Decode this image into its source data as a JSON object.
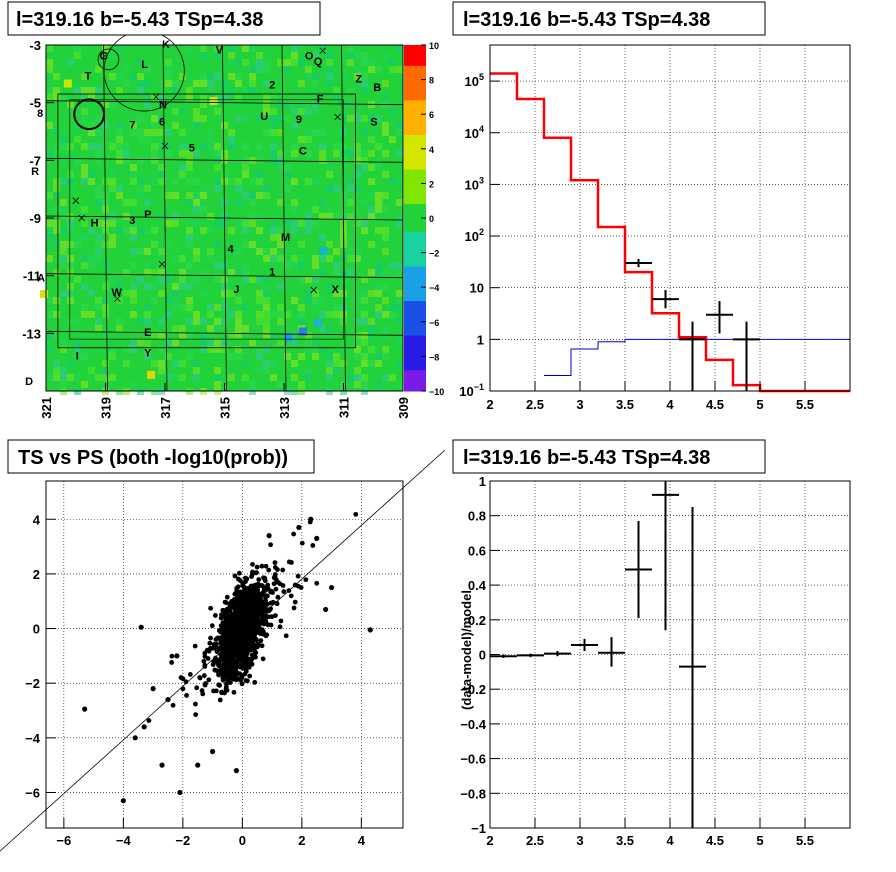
{
  "chart_data": [
    {
      "type": "heatmap",
      "title": "l=319.16 b=-5.43 TSp=4.38",
      "x_ticks": [
        "321",
        "319",
        "317",
        "315",
        "313",
        "311",
        "309"
      ],
      "x_range": [
        321,
        309
      ],
      "y_ticks": [
        "-3",
        "-5",
        "-7",
        "-9",
        "-11",
        "-13"
      ],
      "y_range": [
        -3,
        -15
      ],
      "color_scale": {
        "ticks": [
          "10",
          "8",
          "6",
          "4",
          "2",
          "0",
          "−2",
          "−4",
          "−6",
          "−8",
          "−10"
        ],
        "min": -10,
        "max": 10
      },
      "base_color": "#22d23a",
      "labels": [
        {
          "t": "G",
          "x": 319.2,
          "y": -3.5
        },
        {
          "t": "L",
          "x": 317.8,
          "y": -3.8
        },
        {
          "t": "K",
          "x": 317.1,
          "y": -3.1
        },
        {
          "t": "V",
          "x": 315.3,
          "y": -3.3
        },
        {
          "t": "O",
          "x": 312.3,
          "y": -3.5
        },
        {
          "t": "Q",
          "x": 312.0,
          "y": -3.7
        },
        {
          "t": "T",
          "x": 319.7,
          "y": -4.2
        },
        {
          "t": "Z",
          "x": 310.6,
          "y": -4.3
        },
        {
          "t": "B",
          "x": 310.0,
          "y": -4.6
        },
        {
          "t": "2",
          "x": 313.5,
          "y": -4.5
        },
        {
          "t": "F",
          "x": 311.9,
          "y": -5.0
        },
        {
          "t": "N",
          "x": 317.2,
          "y": -5.2
        },
        {
          "t": "8",
          "x": 321.3,
          "y": -5.5
        },
        {
          "t": "6",
          "x": 317.2,
          "y": -5.8
        },
        {
          "t": "7",
          "x": 318.2,
          "y": -5.9
        },
        {
          "t": "U",
          "x": 313.8,
          "y": -5.6
        },
        {
          "t": "9",
          "x": 312.6,
          "y": -5.7
        },
        {
          "t": "S",
          "x": 310.1,
          "y": -5.8
        },
        {
          "t": "5",
          "x": 316.2,
          "y": -6.7
        },
        {
          "t": "C",
          "x": 312.5,
          "y": -6.8
        },
        {
          "t": "R",
          "x": 321.5,
          "y": -7.5
        },
        {
          "t": "3",
          "x": 318.2,
          "y": -9.2
        },
        {
          "t": "P",
          "x": 317.7,
          "y": -9.0
        },
        {
          "t": "H",
          "x": 319.5,
          "y": -9.3
        },
        {
          "t": "4",
          "x": 314.9,
          "y": -10.2
        },
        {
          "t": "M",
          "x": 313.1,
          "y": -9.8
        },
        {
          "t": "1",
          "x": 313.5,
          "y": -11.0
        },
        {
          "t": "A",
          "x": 321.3,
          "y": -11.2
        },
        {
          "t": "J",
          "x": 314.7,
          "y": -11.6
        },
        {
          "t": "X",
          "x": 311.4,
          "y": -11.6
        },
        {
          "t": "W",
          "x": 318.8,
          "y": -11.7
        },
        {
          "t": "E",
          "x": 317.7,
          "y": -13.1
        },
        {
          "t": "Y",
          "x": 317.7,
          "y": -13.8
        },
        {
          "t": "I",
          "x": 320.0,
          "y": -13.9
        },
        {
          "t": "D",
          "x": 321.7,
          "y": -14.8
        }
      ],
      "crosses": [
        [
          320.0,
          -8.4
        ],
        [
          317.0,
          -6.5
        ],
        [
          311.2,
          -5.5
        ],
        [
          311.7,
          -3.2
        ],
        [
          317.1,
          -10.6
        ],
        [
          318.6,
          -11.8
        ],
        [
          312.0,
          -11.5
        ],
        [
          319.8,
          -9.0
        ],
        [
          317.3,
          -4.8
        ]
      ],
      "circles": [
        {
          "x": 317.7,
          "y": -3.9,
          "r": 1.35
        },
        {
          "x": 318.9,
          "y": -3.5,
          "r": 0.35
        },
        {
          "x": 319.55,
          "y": -5.4,
          "r": 0.5
        }
      ]
    },
    {
      "type": "line",
      "title": "l=319.16 b=-5.43 TSp=4.38",
      "xlim": [
        2,
        6
      ],
      "x_ticks": [
        "2",
        "2.5",
        "3",
        "3.5",
        "4",
        "4.5",
        "5",
        "5.5"
      ],
      "y_scale": "log",
      "ylim": [
        0.1,
        500000
      ],
      "y_ticks": [
        {
          "v": 0.1,
          "m": "10",
          "e": "−1"
        },
        {
          "v": 1,
          "m": "1",
          "e": ""
        },
        {
          "v": 10,
          "m": "10",
          "e": ""
        },
        {
          "v": 100,
          "m": "10",
          "e": "2"
        },
        {
          "v": 1000,
          "m": "10",
          "e": "3"
        },
        {
          "v": 10000,
          "m": "10",
          "e": "4"
        },
        {
          "v": 100000,
          "m": "10",
          "e": "5"
        }
      ],
      "series": [
        {
          "color": "#ff0000",
          "style": "step",
          "edges": [
            2.0,
            2.3,
            2.6,
            2.9,
            3.2,
            3.5,
            3.8,
            4.1,
            4.4,
            4.7,
            5.0,
            6.0
          ],
          "values": [
            140000,
            45000,
            8000,
            1200,
            150,
            20,
            3.2,
            1.1,
            0.4,
            0.13,
            0.1
          ]
        },
        {
          "color": "#0000cc",
          "style": "step",
          "edges": [
            2.6,
            2.9,
            3.2,
            3.5,
            3.8,
            4.1,
            4.4,
            4.7,
            5.0,
            6.0
          ],
          "values": [
            0.2,
            0.65,
            0.9,
            1.0,
            1.0,
            1.0,
            1.0,
            1.0,
            1.0
          ]
        }
      ],
      "points": [
        {
          "x": 3.65,
          "y": 30,
          "xerr": 0.15,
          "ylo": 25,
          "yhi": 36
        },
        {
          "x": 3.95,
          "y": 6,
          "xerr": 0.15,
          "ylo": 4,
          "yhi": 9
        },
        {
          "x": 4.25,
          "y": 1,
          "xerr": 0.15,
          "ylo": 0.1,
          "yhi": 2.2
        },
        {
          "x": 4.55,
          "y": 3,
          "xerr": 0.15,
          "ylo": 1.3,
          "yhi": 5.5
        },
        {
          "x": 4.85,
          "y": 1,
          "xerr": 0.15,
          "ylo": 0.1,
          "yhi": 2.2
        }
      ]
    },
    {
      "type": "scatter",
      "title": "TS vs PS (both -log10(prob))",
      "xlim": [
        -6.6,
        5.4
      ],
      "ylim": [
        -7.3,
        5.4
      ],
      "x_ticks": [
        "−6",
        "−4",
        "−2",
        "0",
        "2",
        "4"
      ],
      "y_ticks": [
        "−6",
        "−4",
        "−2",
        "0",
        "2",
        "4"
      ],
      "diagonal": [
        [
          -7,
          -7
        ],
        [
          6,
          6
        ]
      ],
      "outliers": [
        [
          -5.3,
          -2.95
        ],
        [
          -3.4,
          0.05
        ],
        [
          -4.0,
          -6.3
        ],
        [
          -3.0,
          -2.2
        ],
        [
          -3.3,
          -3.6
        ],
        [
          -3.6,
          -4.0
        ],
        [
          -2.5,
          -2.6
        ],
        [
          -2.1,
          -6.0
        ],
        [
          -1.5,
          -5.0
        ],
        [
          4.3,
          -0.05
        ],
        [
          3.0,
          1.5
        ],
        [
          2.3,
          4.0
        ],
        [
          2.5,
          3.3
        ],
        [
          1.9,
          3.7
        ],
        [
          2.8,
          0.7
        ],
        [
          0.9,
          3.4
        ],
        [
          -2.2,
          -1.0
        ],
        [
          -2.7,
          -5.0
        ],
        [
          -1.0,
          -4.5
        ],
        [
          -0.2,
          -5.2
        ]
      ]
    },
    {
      "type": "scatter",
      "title": "l=319.16 b=-5.43 TSp=4.38",
      "ylabel": "(data-model)/model",
      "xlim": [
        2,
        6
      ],
      "ylim": [
        -1,
        1
      ],
      "x_ticks": [
        "2",
        "2.5",
        "3",
        "3.5",
        "4",
        "4.5",
        "5",
        "5.5"
      ],
      "y_ticks": [
        "−1",
        "−0.8",
        "−0.6",
        "−0.4",
        "−0.2",
        "0",
        "0.2",
        "0.4",
        "0.6",
        "0.8",
        "1"
      ],
      "points": [
        {
          "x": 2.15,
          "y": -0.01,
          "xerr": 0.15,
          "ylo": -0.02,
          "yhi": 0.0
        },
        {
          "x": 2.45,
          "y": -0.005,
          "xerr": 0.15,
          "ylo": -0.015,
          "yhi": 0.005
        },
        {
          "x": 2.75,
          "y": 0.005,
          "xerr": 0.15,
          "ylo": -0.01,
          "yhi": 0.02
        },
        {
          "x": 3.05,
          "y": 0.055,
          "xerr": 0.15,
          "ylo": 0.02,
          "yhi": 0.09
        },
        {
          "x": 3.35,
          "y": 0.01,
          "xerr": 0.15,
          "ylo": -0.07,
          "yhi": 0.1
        },
        {
          "x": 3.65,
          "y": 0.49,
          "xerr": 0.15,
          "ylo": 0.21,
          "yhi": 0.77
        },
        {
          "x": 3.95,
          "y": 0.92,
          "xerr": 0.15,
          "ylo": 0.14,
          "yhi": 1.0
        },
        {
          "x": 4.25,
          "y": -0.07,
          "xerr": 0.15,
          "ylo": -1.0,
          "yhi": 0.85
        }
      ]
    }
  ]
}
